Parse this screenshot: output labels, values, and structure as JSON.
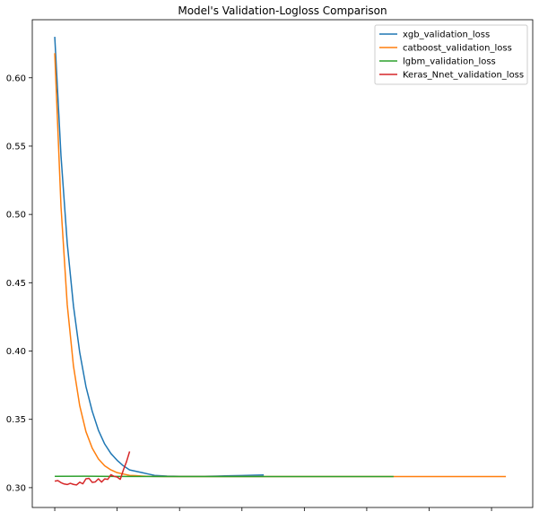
{
  "chart_data": {
    "type": "line",
    "title": "Model's Validation-Logloss Comparison",
    "xlabel": "",
    "ylabel": "",
    "xlim": [
      -3.6,
      76.6
    ],
    "ylim": [
      0.2855,
      0.6425
    ],
    "x_ticks": [
      0,
      10,
      20,
      30,
      40,
      50,
      60,
      70
    ],
    "x_tick_labels_visible": false,
    "y_ticks": [
      0.3,
      0.35,
      0.4,
      0.45,
      0.5,
      0.55,
      0.6
    ],
    "y_tick_labels": [
      "0.30",
      "0.35",
      "0.40",
      "0.45",
      "0.50",
      "0.55",
      "0.60"
    ],
    "grid": false,
    "legend_position": "top-right",
    "series": [
      {
        "name": "xgb_validation_loss",
        "color": "#1f77b4",
        "x": [
          0,
          1,
          2,
          3,
          4,
          5,
          6,
          7,
          8,
          9,
          10,
          11,
          12,
          13,
          14,
          15,
          16,
          18,
          20,
          22,
          24,
          26,
          28,
          30,
          32,
          33.5
        ],
        "y": [
          0.63,
          0.543,
          0.479,
          0.433,
          0.399,
          0.374,
          0.356,
          0.342,
          0.332,
          0.325,
          0.32,
          0.316,
          0.313,
          0.312,
          0.311,
          0.31,
          0.309,
          0.3085,
          0.3083,
          0.3083,
          0.3083,
          0.3085,
          0.3087,
          0.3089,
          0.3091,
          0.3093
        ]
      },
      {
        "name": "catboost_validation_loss",
        "color": "#ff7f0e",
        "x": [
          0,
          1,
          2,
          3,
          4,
          5,
          6,
          7,
          8,
          9,
          10,
          11,
          12,
          13,
          14,
          15,
          16,
          18,
          20,
          30,
          40,
          50,
          60,
          72.3
        ],
        "y": [
          0.618,
          0.506,
          0.434,
          0.389,
          0.36,
          0.341,
          0.329,
          0.321,
          0.316,
          0.313,
          0.311,
          0.31,
          0.309,
          0.3088,
          0.3085,
          0.3083,
          0.3082,
          0.3081,
          0.3081,
          0.3081,
          0.3081,
          0.3081,
          0.3081,
          0.3081
        ]
      },
      {
        "name": "lgbm_validation_loss",
        "color": "#2ca02c",
        "x": [
          0,
          5,
          10,
          20,
          30,
          40,
          54.3
        ],
        "y": [
          0.3083,
          0.3084,
          0.3082,
          0.3081,
          0.3081,
          0.3081,
          0.3081
        ]
      },
      {
        "name": "Keras_Nnet_validation_loss",
        "color": "#d62728",
        "x": [
          0,
          0.5,
          1,
          1.5,
          2,
          2.5,
          3,
          3.5,
          4,
          4.5,
          5,
          5.5,
          6,
          6.5,
          7,
          7.5,
          8,
          8.5,
          9,
          9.5,
          10,
          10.5,
          11,
          11.5,
          12
        ],
        "y": [
          0.3048,
          0.3052,
          0.3037,
          0.3027,
          0.3023,
          0.3032,
          0.3024,
          0.302,
          0.304,
          0.3028,
          0.3065,
          0.3068,
          0.3039,
          0.3042,
          0.3065,
          0.3041,
          0.3064,
          0.3061,
          0.3095,
          0.3083,
          0.3078,
          0.3061,
          0.313,
          0.319,
          0.3265
        ]
      }
    ]
  }
}
